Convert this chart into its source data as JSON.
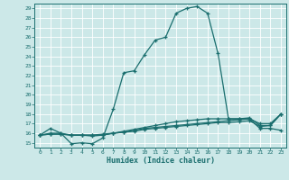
{
  "xlabel": "Humidex (Indice chaleur)",
  "bg_color": "#cce8e8",
  "grid_color": "#aacccc",
  "line_color": "#1a6e6e",
  "xlim": [
    -0.5,
    23.5
  ],
  "ylim": [
    14.5,
    29.5
  ],
  "xticks": [
    0,
    1,
    2,
    3,
    4,
    5,
    6,
    7,
    8,
    9,
    10,
    11,
    12,
    13,
    14,
    15,
    16,
    17,
    18,
    19,
    20,
    21,
    22,
    23
  ],
  "yticks": [
    15,
    16,
    17,
    18,
    19,
    20,
    21,
    22,
    23,
    24,
    25,
    26,
    27,
    28,
    29
  ],
  "series": [
    {
      "x": [
        0,
        1,
        2,
        3,
        4,
        5,
        6,
        7,
        8,
        9,
        10,
        11,
        12,
        13,
        14,
        15,
        16,
        17,
        18,
        19,
        20,
        21,
        22,
        23
      ],
      "y": [
        15.8,
        16.5,
        16.0,
        14.9,
        15.0,
        14.9,
        15.5,
        18.5,
        22.3,
        22.5,
        24.2,
        25.7,
        26.0,
        28.5,
        29.0,
        29.2,
        28.5,
        24.3,
        17.5,
        17.5,
        17.5,
        16.5,
        16.5,
        16.3
      ]
    },
    {
      "x": [
        0,
        1,
        2,
        3,
        4,
        5,
        6,
        7,
        8,
        9,
        10,
        11,
        12,
        13,
        14,
        15,
        16,
        17,
        18,
        19,
        20,
        21,
        22,
        23
      ],
      "y": [
        15.8,
        16.0,
        16.0,
        15.8,
        15.8,
        15.7,
        15.8,
        16.0,
        16.2,
        16.4,
        16.6,
        16.8,
        17.0,
        17.2,
        17.3,
        17.4,
        17.5,
        17.5,
        17.5,
        17.5,
        17.6,
        16.8,
        16.8,
        18.0
      ]
    },
    {
      "x": [
        0,
        1,
        2,
        3,
        4,
        5,
        6,
        7,
        8,
        9,
        10,
        11,
        12,
        13,
        14,
        15,
        16,
        17,
        18,
        19,
        20,
        21,
        22,
        23
      ],
      "y": [
        15.8,
        15.9,
        15.9,
        15.8,
        15.8,
        15.8,
        15.9,
        16.0,
        16.1,
        16.2,
        16.4,
        16.5,
        16.6,
        16.7,
        16.8,
        16.9,
        17.0,
        17.1,
        17.1,
        17.2,
        17.3,
        16.7,
        16.8,
        18.0
      ]
    },
    {
      "x": [
        0,
        1,
        2,
        3,
        4,
        5,
        6,
        7,
        8,
        9,
        10,
        11,
        12,
        13,
        14,
        15,
        16,
        17,
        18,
        19,
        20,
        21,
        22,
        23
      ],
      "y": [
        15.8,
        15.9,
        15.9,
        15.8,
        15.8,
        15.8,
        15.8,
        16.0,
        16.1,
        16.3,
        16.5,
        16.6,
        16.7,
        16.8,
        16.9,
        17.0,
        17.1,
        17.2,
        17.3,
        17.4,
        17.5,
        17.0,
        17.0,
        18.0
      ]
    }
  ]
}
